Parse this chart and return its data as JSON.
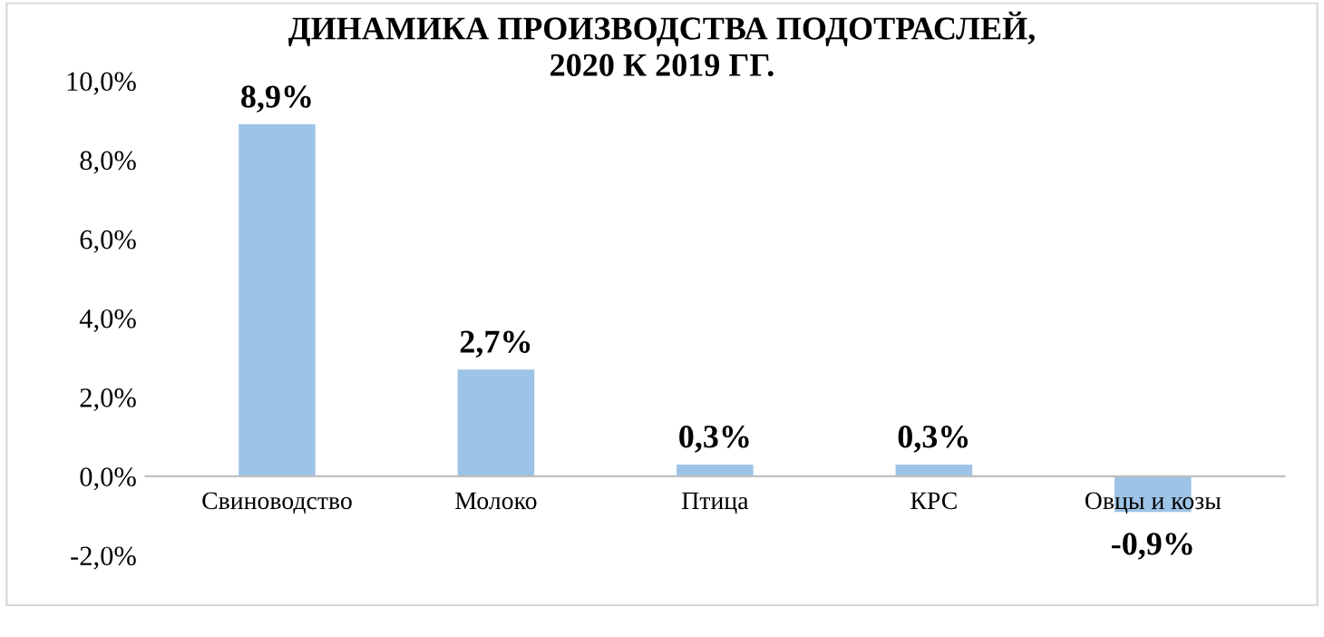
{
  "chart_data": {
    "type": "bar",
    "title": "ДИНАМИКА ПРОИЗВОДСТВА ПОДОТРАСЛЕЙ,\n2020 К 2019 ГГ.",
    "categories": [
      "Свиноводство",
      "Молоко",
      "Птица",
      "КРС",
      "Овцы и козы"
    ],
    "values": [
      8.9,
      2.7,
      0.3,
      0.3,
      -0.9
    ],
    "value_labels": [
      "8,9%",
      "2,7%",
      "0,3%",
      "0,3%",
      "-0,9%"
    ],
    "color": "#9dc3e6",
    "ylim": [
      -2,
      10
    ],
    "yticks": [
      {
        "value": -2,
        "label": "-2,0%"
      },
      {
        "value": 0,
        "label": "0,0%"
      },
      {
        "value": 2,
        "label": "2,0%"
      },
      {
        "value": 4,
        "label": "4,0%"
      },
      {
        "value": 6,
        "label": "6,0%"
      },
      {
        "value": 8,
        "label": "8,0%"
      },
      {
        "value": 10,
        "label": "10,0%"
      }
    ],
    "grid": false,
    "legend": false
  }
}
